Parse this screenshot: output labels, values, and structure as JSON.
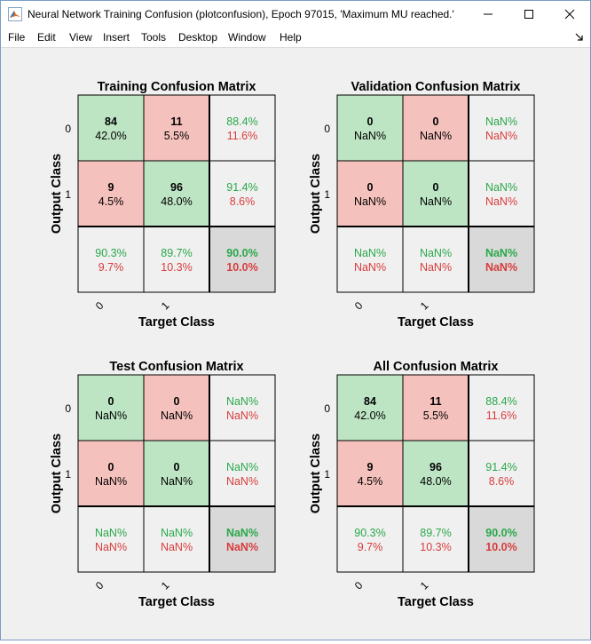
{
  "window": {
    "title": "Neural Network Training Confusion (plotconfusion), Epoch 97015, 'Maximum MU reached.'",
    "controls": [
      "minimize",
      "maximize",
      "close"
    ]
  },
  "menu": {
    "items": [
      "File",
      "Edit",
      "View",
      "Insert",
      "Tools",
      "Desktop",
      "Window",
      "Help"
    ]
  },
  "colors": {
    "correct_cell": "#bde5c4",
    "incorrect_cell": "#f5c1bd",
    "summary_cell": "#f0f0f0",
    "overall_cell": "#d9d9d9",
    "accuracy_text": "#2aa84a",
    "error_text": "#d93c3c"
  },
  "chart_data": [
    {
      "type": "heatmap",
      "title": "Training Confusion Matrix",
      "xlabel": "Target Class",
      "ylabel": "Output Class",
      "classes": [
        "0",
        "1"
      ],
      "counts": [
        [
          "84",
          "11"
        ],
        [
          "9",
          "96"
        ]
      ],
      "percents": [
        [
          "42.0%",
          "5.5%"
        ],
        [
          "4.5%",
          "48.0%"
        ]
      ],
      "row_summary": [
        [
          "88.4%",
          "11.6%"
        ],
        [
          "91.4%",
          "8.6%"
        ]
      ],
      "col_summary": [
        [
          "90.3%",
          "9.7%"
        ],
        [
          "89.7%",
          "10.3%"
        ]
      ],
      "overall": [
        "90.0%",
        "10.0%"
      ]
    },
    {
      "type": "heatmap",
      "title": "Validation Confusion Matrix",
      "xlabel": "Target Class",
      "ylabel": "Output Class",
      "classes": [
        "0",
        "1"
      ],
      "counts": [
        [
          "0",
          "0"
        ],
        [
          "0",
          "0"
        ]
      ],
      "percents": [
        [
          "NaN%",
          "NaN%"
        ],
        [
          "NaN%",
          "NaN%"
        ]
      ],
      "row_summary": [
        [
          "NaN%",
          "NaN%"
        ],
        [
          "NaN%",
          "NaN%"
        ]
      ],
      "col_summary": [
        [
          "NaN%",
          "NaN%"
        ],
        [
          "NaN%",
          "NaN%"
        ]
      ],
      "overall": [
        "NaN%",
        "NaN%"
      ]
    },
    {
      "type": "heatmap",
      "title": "Test Confusion Matrix",
      "xlabel": "Target Class",
      "ylabel": "Output Class",
      "classes": [
        "0",
        "1"
      ],
      "counts": [
        [
          "0",
          "0"
        ],
        [
          "0",
          "0"
        ]
      ],
      "percents": [
        [
          "NaN%",
          "NaN%"
        ],
        [
          "NaN%",
          "NaN%"
        ]
      ],
      "row_summary": [
        [
          "NaN%",
          "NaN%"
        ],
        [
          "NaN%",
          "NaN%"
        ]
      ],
      "col_summary": [
        [
          "NaN%",
          "NaN%"
        ],
        [
          "NaN%",
          "NaN%"
        ]
      ],
      "overall": [
        "NaN%",
        "NaN%"
      ]
    },
    {
      "type": "heatmap",
      "title": "All Confusion Matrix",
      "xlabel": "Target Class",
      "ylabel": "Output Class",
      "classes": [
        "0",
        "1"
      ],
      "counts": [
        [
          "84",
          "11"
        ],
        [
          "9",
          "96"
        ]
      ],
      "percents": [
        [
          "42.0%",
          "5.5%"
        ],
        [
          "4.5%",
          "48.0%"
        ]
      ],
      "row_summary": [
        [
          "88.4%",
          "11.6%"
        ],
        [
          "91.4%",
          "8.6%"
        ]
      ],
      "col_summary": [
        [
          "90.3%",
          "9.7%"
        ],
        [
          "89.7%",
          "10.3%"
        ]
      ],
      "overall": [
        "90.0%",
        "10.0%"
      ]
    }
  ]
}
